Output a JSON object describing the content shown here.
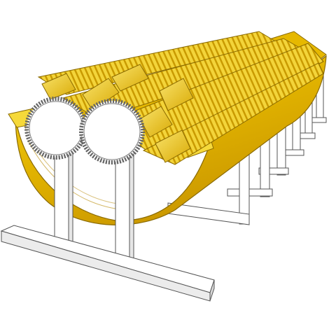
{
  "scene": {
    "subject": "gear-rack-trough-model",
    "colors": {
      "background": "#ffffff",
      "trough_light": "#f0d020",
      "trough_mid": "#e2b400",
      "trough_dark": "#c79400",
      "teeth_light": "#f6dd55",
      "teeth_dark": "#b88a00",
      "stand": "#ffffff",
      "stand_shade": "#e8e8e8",
      "outline": "#555555",
      "gear_face": "#ffffff"
    },
    "stand_count": 8,
    "gear_count": 2,
    "icons": [
      "gear-icon",
      "gear-icon"
    ]
  }
}
